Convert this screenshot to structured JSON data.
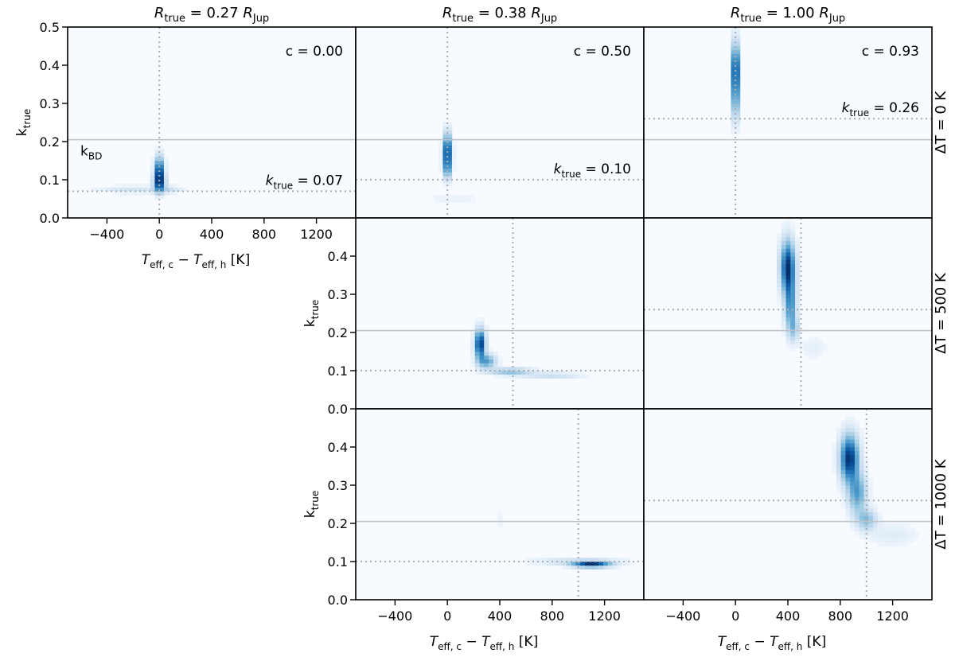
{
  "chart_data": {
    "type": "heatmap",
    "layout": "3x3 grid of 2D histogram panels (lower-left two panels empty)",
    "colormap": [
      "#f7fbff",
      "#deebf7",
      "#c6dbef",
      "#9ecae1",
      "#6baed6",
      "#4292c6",
      "#2171b5",
      "#08519c",
      "#08306b"
    ],
    "xlim": [
      -700,
      1500
    ],
    "ylim": [
      0.0,
      0.5
    ],
    "xticks": [
      -400,
      0,
      400,
      800,
      1200
    ],
    "yticks_top": [
      "0.0",
      "0.1",
      "0.2",
      "0.3",
      "0.4",
      "0.5"
    ],
    "yticks_lower": [
      "0.0",
      "0.1",
      "0.2",
      "0.3",
      "0.4"
    ],
    "xlabel": {
      "main": "T",
      "sub1": "eff, c",
      "minus": " − ",
      "main2": "T",
      "sub2": "eff, h",
      "unit": " [K]"
    },
    "ylabel": {
      "main": "k",
      "sub": "true"
    },
    "title_symbol": {
      "main": "R",
      "sub": "true",
      "eq": " = ",
      "unit": " R",
      "unit_sub": "Jup"
    },
    "columns": [
      {
        "R_true": "0.27",
        "c_label": "c = 0.00",
        "k_true": 0.07,
        "k_true_label": " = 0.07"
      },
      {
        "R_true": "0.38",
        "c_label": "c = 0.50",
        "k_true": 0.1,
        "k_true_label": " = 0.10"
      },
      {
        "R_true": "1.00",
        "c_label": "c = 0.93",
        "k_true": 0.26,
        "k_true_label": " = 0.26"
      }
    ],
    "rows": [
      {
        "label": "ΔT = 0 K",
        "delta_T": 0
      },
      {
        "label": "ΔT = 500 K",
        "delta_T": 500
      },
      {
        "label": "ΔT = 1000 K",
        "delta_T": 1000
      }
    ],
    "k_BD": 0.205,
    "k_BD_label": {
      "main": "k",
      "sub": "BD"
    },
    "reference_lines": {
      "k_BD": "solid grey",
      "k_true": "dotted grey",
      "delta_T": "dotted grey"
    },
    "panels": [
      {
        "row": 0,
        "col": 0,
        "clusters": [
          {
            "x": 0,
            "y": 0.12,
            "sx": 22,
            "sy": 0.025,
            "w": 1.0
          },
          {
            "x": 0,
            "y": 0.09,
            "sx": 30,
            "sy": 0.015,
            "w": 0.6
          },
          {
            "x": -200,
            "y": 0.075,
            "sx": 180,
            "sy": 0.006,
            "w": 0.12
          },
          {
            "x": 80,
            "y": 0.075,
            "sx": 60,
            "sy": 0.006,
            "w": 0.12
          }
        ]
      },
      {
        "row": 0,
        "col": 1,
        "clusters": [
          {
            "x": 0,
            "y": 0.175,
            "sx": 20,
            "sy": 0.03,
            "w": 1.0
          },
          {
            "x": 0,
            "y": 0.13,
            "sx": 20,
            "sy": 0.02,
            "w": 0.4
          },
          {
            "x": 50,
            "y": 0.05,
            "sx": 200,
            "sy": 0.006,
            "w": 0.04
          }
        ]
      },
      {
        "row": 0,
        "col": 2,
        "clusters": [
          {
            "x": 0,
            "y": 0.39,
            "sx": 18,
            "sy": 0.045,
            "w": 1.0
          },
          {
            "x": 0,
            "y": 0.31,
            "sx": 18,
            "sy": 0.04,
            "w": 0.45
          }
        ]
      },
      {
        "row": 1,
        "col": 1,
        "clusters": [
          {
            "x": 250,
            "y": 0.17,
            "sx": 25,
            "sy": 0.025,
            "w": 1.0
          },
          {
            "x": 300,
            "y": 0.125,
            "sx": 45,
            "sy": 0.012,
            "w": 0.5
          },
          {
            "x": 480,
            "y": 0.098,
            "sx": 110,
            "sy": 0.006,
            "w": 0.35
          },
          {
            "x": 800,
            "y": 0.088,
            "sx": 150,
            "sy": 0.005,
            "w": 0.18
          }
        ]
      },
      {
        "row": 1,
        "col": 2,
        "clusters": [
          {
            "x": 400,
            "y": 0.37,
            "sx": 35,
            "sy": 0.045,
            "w": 1.0
          },
          {
            "x": 420,
            "y": 0.27,
            "sx": 28,
            "sy": 0.045,
            "w": 0.55
          },
          {
            "x": 450,
            "y": 0.21,
            "sx": 25,
            "sy": 0.02,
            "w": 0.25
          },
          {
            "x": 600,
            "y": 0.16,
            "sx": 70,
            "sy": 0.02,
            "w": 0.05
          }
        ]
      },
      {
        "row": 2,
        "col": 1,
        "clusters": [
          {
            "x": 1100,
            "y": 0.093,
            "sx": 90,
            "sy": 0.005,
            "w": 1.0
          },
          {
            "x": 1000,
            "y": 0.1,
            "sx": 220,
            "sy": 0.007,
            "w": 0.15
          },
          {
            "x": 400,
            "y": 0.21,
            "sx": 30,
            "sy": 0.02,
            "w": 0.03
          }
        ]
      },
      {
        "row": 2,
        "col": 2,
        "clusters": [
          {
            "x": 870,
            "y": 0.37,
            "sx": 45,
            "sy": 0.04,
            "w": 1.0
          },
          {
            "x": 930,
            "y": 0.28,
            "sx": 45,
            "sy": 0.035,
            "w": 0.5
          },
          {
            "x": 1000,
            "y": 0.21,
            "sx": 50,
            "sy": 0.018,
            "w": 0.35
          },
          {
            "x": 1200,
            "y": 0.17,
            "sx": 120,
            "sy": 0.02,
            "w": 0.07
          }
        ]
      }
    ]
  }
}
